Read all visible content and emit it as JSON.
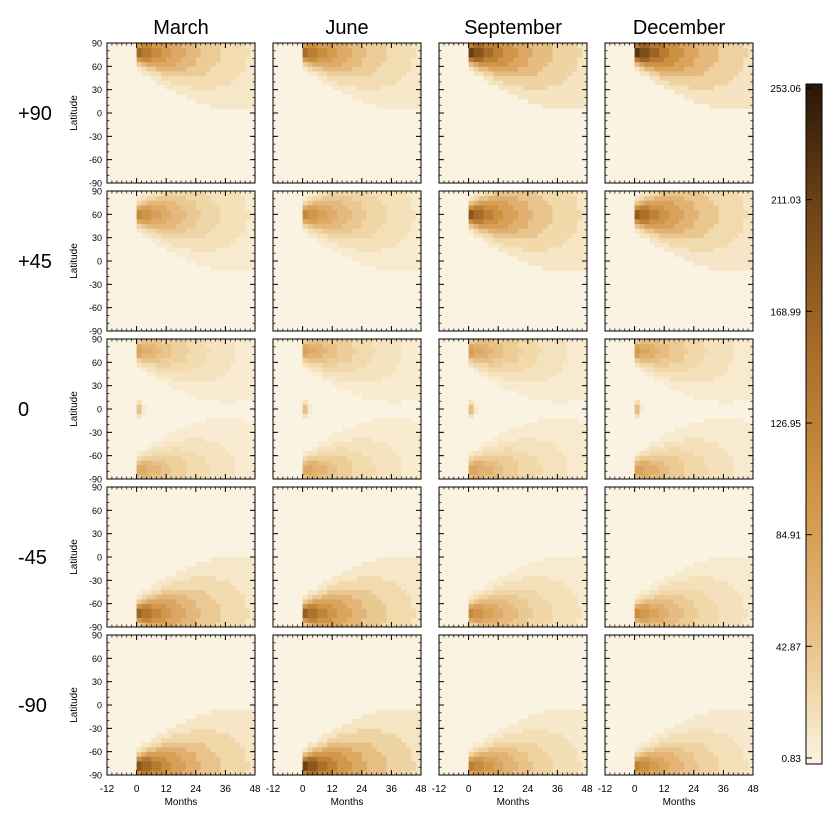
{
  "chart_data": {
    "type": "heatmap",
    "column_titles": [
      "March",
      "June",
      "September",
      "December"
    ],
    "row_labels": [
      "+90",
      "+45",
      "0",
      "-45",
      "-90"
    ],
    "ylabel": "Latitude",
    "xlabel": "Months",
    "yticks": [
      90,
      60,
      30,
      0,
      -30,
      -60,
      -90
    ],
    "xticks": [
      -12,
      0,
      12,
      24,
      36,
      48
    ],
    "xlim": [
      -12,
      48
    ],
    "ylim": [
      -90,
      90
    ],
    "colorbar": {
      "ticks": [
        "253.06",
        "211.03",
        "168.99",
        "126.95",
        "84.91",
        "42.87",
        "0.83"
      ],
      "range": [
        0.83,
        253.06
      ],
      "colors": [
        "#fbf3e2",
        "#f1d9aa",
        "#e1b070",
        "#cd9040",
        "#a56a28",
        "#6e4316",
        "#2a1608"
      ]
    },
    "panels": [
      {
        "row": "+90",
        "column": "March",
        "max": 190
      },
      {
        "row": "+90",
        "column": "June",
        "max": 185
      },
      {
        "row": "+90",
        "column": "September",
        "max": 240
      },
      {
        "row": "+90",
        "column": "December",
        "max": 250
      },
      {
        "row": "+45",
        "column": "March",
        "max": 150
      },
      {
        "row": "+45",
        "column": "June",
        "max": 150
      },
      {
        "row": "+45",
        "column": "September",
        "max": 210
      },
      {
        "row": "+45",
        "column": "December",
        "max": 205
      },
      {
        "row": "0",
        "column": "March",
        "max": 130
      },
      {
        "row": "0",
        "column": "June",
        "max": 135
      },
      {
        "row": "0",
        "column": "September",
        "max": 140
      },
      {
        "row": "0",
        "column": "December",
        "max": 145
      },
      {
        "row": "-45",
        "column": "March",
        "max": 195
      },
      {
        "row": "-45",
        "column": "June",
        "max": 200
      },
      {
        "row": "-45",
        "column": "September",
        "max": 150
      },
      {
        "row": "-45",
        "column": "December",
        "max": 145
      },
      {
        "row": "-90",
        "column": "March",
        "max": 215
      },
      {
        "row": "-90",
        "column": "June",
        "max": 235
      },
      {
        "row": "-90",
        "column": "September",
        "max": 165
      },
      {
        "row": "-90",
        "column": "December",
        "max": 160
      }
    ]
  }
}
